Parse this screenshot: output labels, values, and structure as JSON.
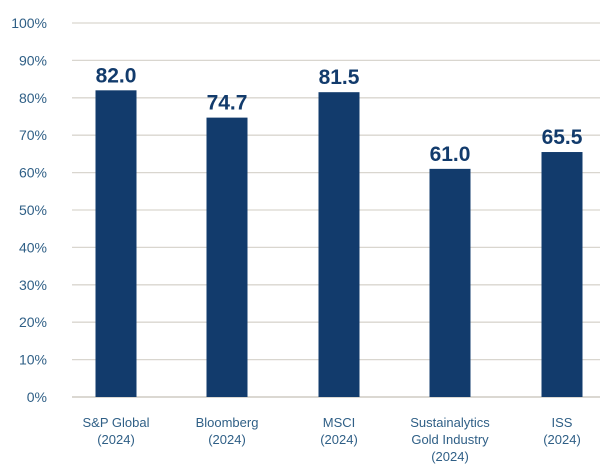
{
  "chart_data": {
    "type": "bar",
    "title": "",
    "xlabel": "",
    "ylabel": "",
    "categories": [
      [
        "S&P Global",
        "(2024)"
      ],
      [
        "Bloomberg",
        "(2024)"
      ],
      [
        "MSCI",
        "(2024)"
      ],
      [
        "Sustainalytics",
        "Gold Industry",
        "(2024)"
      ],
      [
        "ISS",
        "(2024)"
      ]
    ],
    "values": [
      82.0,
      74.7,
      81.5,
      61.0,
      65.5
    ],
    "value_labels": [
      "82.0",
      "74.7",
      "81.5",
      "61.0",
      "65.5"
    ],
    "ylim": [
      0,
      100
    ],
    "yticks": [
      0,
      10,
      20,
      30,
      40,
      50,
      60,
      70,
      80,
      90,
      100
    ],
    "ytick_labels": [
      "0%",
      "10%",
      "20%",
      "30%",
      "40%",
      "50%",
      "60%",
      "70%",
      "80%",
      "90%",
      "100%"
    ],
    "grid": true,
    "legend": "none",
    "colors": {
      "bar": "#123b6c",
      "value_label": "#123b6c",
      "tick_label": "#2f5f86",
      "grid": "#d9d6cf"
    }
  }
}
